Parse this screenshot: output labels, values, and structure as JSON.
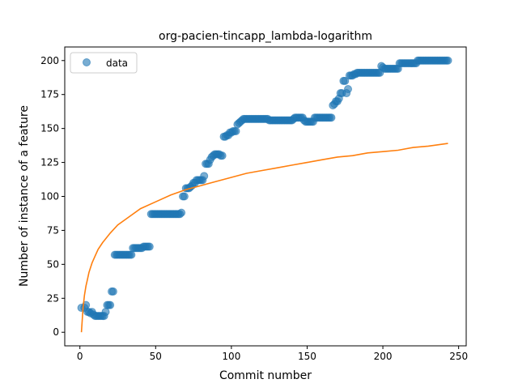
{
  "chart_data": {
    "type": "scatter",
    "title": "org-pacien-tincapp_lambda-logarithm",
    "xlabel": "Commit number",
    "ylabel": "Number of instance of a feature",
    "xlim": [
      -10,
      255
    ],
    "ylim": [
      -10,
      210
    ],
    "xticks": [
      0,
      50,
      100,
      150,
      200,
      250
    ],
    "yticks": [
      0,
      25,
      50,
      75,
      100,
      125,
      150,
      175,
      200
    ],
    "grid": false,
    "legend": {
      "placement": "upper-left",
      "entries": [
        "data"
      ]
    },
    "series": [
      {
        "name": "data",
        "kind": "scatter",
        "color": "#1f77b4",
        "points": [
          [
            1,
            18
          ],
          [
            3,
            18
          ],
          [
            4,
            20
          ],
          [
            5,
            15
          ],
          [
            6,
            15
          ],
          [
            7,
            14
          ],
          [
            8,
            15
          ],
          [
            9,
            13
          ],
          [
            10,
            12
          ],
          [
            11,
            12
          ],
          [
            12,
            12
          ],
          [
            13,
            12
          ],
          [
            14,
            12
          ],
          [
            15,
            12
          ],
          [
            16,
            12
          ],
          [
            17,
            15
          ],
          [
            18,
            20
          ],
          [
            19,
            20
          ],
          [
            20,
            20
          ],
          [
            21,
            30
          ],
          [
            22,
            30
          ],
          [
            23,
            57
          ],
          [
            24,
            57
          ],
          [
            25,
            57
          ],
          [
            26,
            57
          ],
          [
            27,
            57
          ],
          [
            28,
            57
          ],
          [
            29,
            57
          ],
          [
            30,
            57
          ],
          [
            31,
            57
          ],
          [
            32,
            57
          ],
          [
            33,
            57
          ],
          [
            34,
            57
          ],
          [
            35,
            62
          ],
          [
            36,
            62
          ],
          [
            37,
            62
          ],
          [
            38,
            62
          ],
          [
            39,
            62
          ],
          [
            40,
            62
          ],
          [
            41,
            62
          ],
          [
            42,
            63
          ],
          [
            43,
            63
          ],
          [
            44,
            63
          ],
          [
            45,
            63
          ],
          [
            46,
            63
          ],
          [
            47,
            87
          ],
          [
            48,
            87
          ],
          [
            49,
            87
          ],
          [
            50,
            87
          ],
          [
            51,
            87
          ],
          [
            52,
            87
          ],
          [
            53,
            87
          ],
          [
            54,
            87
          ],
          [
            55,
            87
          ],
          [
            56,
            87
          ],
          [
            57,
            87
          ],
          [
            58,
            87
          ],
          [
            59,
            87
          ],
          [
            60,
            87
          ],
          [
            61,
            87
          ],
          [
            62,
            87
          ],
          [
            63,
            87
          ],
          [
            64,
            87
          ],
          [
            65,
            87
          ],
          [
            66,
            87
          ],
          [
            67,
            88
          ],
          [
            68,
            100
          ],
          [
            69,
            100
          ],
          [
            70,
            106
          ],
          [
            71,
            106
          ],
          [
            72,
            106
          ],
          [
            73,
            107
          ],
          [
            74,
            108
          ],
          [
            75,
            110
          ],
          [
            76,
            110
          ],
          [
            77,
            112
          ],
          [
            78,
            112
          ],
          [
            79,
            112
          ],
          [
            80,
            112
          ],
          [
            81,
            112
          ],
          [
            82,
            115
          ],
          [
            83,
            124
          ],
          [
            84,
            124
          ],
          [
            85,
            124
          ],
          [
            86,
            127
          ],
          [
            87,
            129
          ],
          [
            88,
            130
          ],
          [
            89,
            131
          ],
          [
            90,
            131
          ],
          [
            91,
            131
          ],
          [
            92,
            131
          ],
          [
            93,
            130
          ],
          [
            94,
            130
          ],
          [
            95,
            144
          ],
          [
            96,
            144
          ],
          [
            97,
            145
          ],
          [
            98,
            145
          ],
          [
            99,
            147
          ],
          [
            100,
            147
          ],
          [
            101,
            148
          ],
          [
            102,
            148
          ],
          [
            103,
            148
          ],
          [
            104,
            153
          ],
          [
            105,
            154
          ],
          [
            106,
            155
          ],
          [
            107,
            156
          ],
          [
            108,
            157
          ],
          [
            109,
            157
          ],
          [
            110,
            157
          ],
          [
            111,
            157
          ],
          [
            112,
            157
          ],
          [
            113,
            157
          ],
          [
            114,
            157
          ],
          [
            115,
            157
          ],
          [
            116,
            157
          ],
          [
            117,
            157
          ],
          [
            118,
            157
          ],
          [
            119,
            157
          ],
          [
            120,
            157
          ],
          [
            121,
            157
          ],
          [
            122,
            157
          ],
          [
            123,
            157
          ],
          [
            124,
            157
          ],
          [
            125,
            156
          ],
          [
            126,
            156
          ],
          [
            127,
            156
          ],
          [
            128,
            156
          ],
          [
            129,
            156
          ],
          [
            130,
            156
          ],
          [
            131,
            156
          ],
          [
            132,
            156
          ],
          [
            133,
            156
          ],
          [
            134,
            156
          ],
          [
            135,
            156
          ],
          [
            136,
            156
          ],
          [
            137,
            156
          ],
          [
            138,
            156
          ],
          [
            139,
            156
          ],
          [
            140,
            156
          ],
          [
            141,
            157
          ],
          [
            142,
            158
          ],
          [
            143,
            158
          ],
          [
            144,
            158
          ],
          [
            145,
            158
          ],
          [
            146,
            158
          ],
          [
            147,
            158
          ],
          [
            148,
            156
          ],
          [
            149,
            155
          ],
          [
            150,
            155
          ],
          [
            151,
            155
          ],
          [
            152,
            155
          ],
          [
            153,
            155
          ],
          [
            154,
            155
          ],
          [
            155,
            158
          ],
          [
            156,
            158
          ],
          [
            157,
            158
          ],
          [
            158,
            158
          ],
          [
            159,
            158
          ],
          [
            160,
            158
          ],
          [
            161,
            158
          ],
          [
            162,
            158
          ],
          [
            163,
            158
          ],
          [
            164,
            158
          ],
          [
            165,
            158
          ],
          [
            166,
            158
          ],
          [
            167,
            167
          ],
          [
            168,
            168
          ],
          [
            169,
            170
          ],
          [
            170,
            170
          ],
          [
            171,
            172
          ],
          [
            172,
            176
          ],
          [
            173,
            176
          ],
          [
            174,
            185
          ],
          [
            175,
            185
          ],
          [
            176,
            176
          ],
          [
            177,
            179
          ],
          [
            178,
            189
          ],
          [
            179,
            189
          ],
          [
            180,
            189
          ],
          [
            181,
            190
          ],
          [
            182,
            190
          ],
          [
            183,
            191
          ],
          [
            184,
            191
          ],
          [
            185,
            191
          ],
          [
            186,
            191
          ],
          [
            187,
            191
          ],
          [
            188,
            191
          ],
          [
            189,
            191
          ],
          [
            190,
            191
          ],
          [
            191,
            191
          ],
          [
            192,
            191
          ],
          [
            193,
            191
          ],
          [
            194,
            191
          ],
          [
            195,
            191
          ],
          [
            196,
            191
          ],
          [
            197,
            191
          ],
          [
            198,
            191
          ],
          [
            199,
            196
          ],
          [
            200,
            195
          ],
          [
            201,
            194
          ],
          [
            202,
            194
          ],
          [
            203,
            194
          ],
          [
            204,
            194
          ],
          [
            205,
            194
          ],
          [
            206,
            194
          ],
          [
            207,
            194
          ],
          [
            208,
            194
          ],
          [
            209,
            194
          ],
          [
            210,
            194
          ],
          [
            211,
            198
          ],
          [
            212,
            198
          ],
          [
            213,
            198
          ],
          [
            214,
            198
          ],
          [
            215,
            198
          ],
          [
            216,
            198
          ],
          [
            217,
            198
          ],
          [
            218,
            198
          ],
          [
            219,
            198
          ],
          [
            220,
            198
          ],
          [
            221,
            198
          ],
          [
            222,
            198
          ],
          [
            223,
            200
          ],
          [
            224,
            200
          ],
          [
            225,
            200
          ],
          [
            226,
            200
          ],
          [
            227,
            200
          ],
          [
            228,
            200
          ],
          [
            229,
            200
          ],
          [
            230,
            200
          ],
          [
            231,
            200
          ],
          [
            232,
            200
          ],
          [
            233,
            200
          ],
          [
            234,
            200
          ],
          [
            235,
            200
          ],
          [
            236,
            200
          ],
          [
            237,
            200
          ],
          [
            238,
            200
          ],
          [
            239,
            200
          ],
          [
            240,
            200
          ],
          [
            241,
            200
          ],
          [
            242,
            200
          ],
          [
            243,
            200
          ]
        ]
      },
      {
        "kind": "line",
        "color": "#ff7f0e",
        "points": [
          [
            1,
            0
          ],
          [
            2,
            17
          ],
          [
            3,
            27
          ],
          [
            4,
            34
          ],
          [
            5,
            39
          ],
          [
            6,
            44
          ],
          [
            8,
            51
          ],
          [
            10,
            56
          ],
          [
            12,
            61
          ],
          [
            15,
            66
          ],
          [
            20,
            73
          ],
          [
            25,
            79
          ],
          [
            30,
            83
          ],
          [
            40,
            91
          ],
          [
            50,
            96
          ],
          [
            60,
            101
          ],
          [
            70,
            105
          ],
          [
            80,
            108
          ],
          [
            90,
            111
          ],
          [
            100,
            114
          ],
          [
            110,
            117
          ],
          [
            120,
            119
          ],
          [
            130,
            121
          ],
          [
            140,
            123
          ],
          [
            150,
            125
          ],
          [
            160,
            127
          ],
          [
            170,
            129
          ],
          [
            180,
            130
          ],
          [
            190,
            132
          ],
          [
            200,
            133
          ],
          [
            210,
            134
          ],
          [
            220,
            136
          ],
          [
            230,
            137
          ],
          [
            243,
            139
          ]
        ]
      }
    ]
  }
}
